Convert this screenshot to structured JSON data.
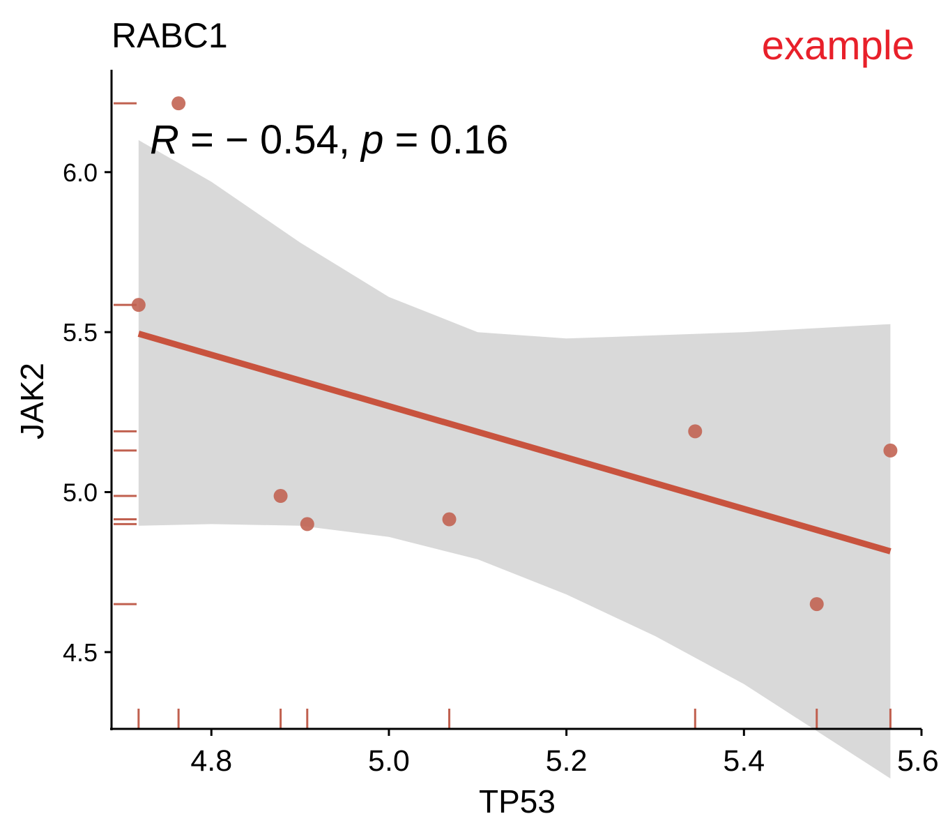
{
  "chart_data": {
    "type": "scatter",
    "title": "RABC1",
    "watermark": "example",
    "xlabel": "TP53",
    "ylabel": "JAK2",
    "xlim": [
      4.6875,
      5.6
    ],
    "ylim": [
      4.26,
      6.32
    ],
    "xticks": [
      "4.8",
      "5.0",
      "5.2",
      "5.4",
      "5.6"
    ],
    "yticks": [
      "4.5",
      "5.0",
      "5.5",
      "6.0"
    ],
    "annotation": {
      "r_label": "R",
      "r_text": " = − 0.54, ",
      "p_label": "p",
      "p_text": " = 0.16"
    },
    "points": [
      {
        "x": 4.718,
        "y": 5.585
      },
      {
        "x": 4.763,
        "y": 6.215
      },
      {
        "x": 4.878,
        "y": 4.988
      },
      {
        "x": 4.908,
        "y": 4.9
      },
      {
        "x": 5.068,
        "y": 4.915
      },
      {
        "x": 5.345,
        "y": 5.19
      },
      {
        "x": 5.482,
        "y": 4.65
      },
      {
        "x": 5.565,
        "y": 5.13
      }
    ],
    "regression": {
      "x": [
        4.718,
        5.565
      ],
      "y": [
        5.495,
        4.815
      ]
    },
    "confidence_band": {
      "x": [
        4.718,
        4.8,
        4.9,
        5.0,
        5.1,
        5.2,
        5.3,
        5.4,
        5.565
      ],
      "upper": [
        6.1,
        5.97,
        5.78,
        5.61,
        5.5,
        5.48,
        5.49,
        5.5,
        5.525
      ],
      "lower": [
        4.895,
        4.9,
        4.895,
        4.86,
        4.79,
        4.68,
        4.55,
        4.4,
        4.105
      ]
    },
    "colors": {
      "point": "#c0604f",
      "line": "#c8533e",
      "band": "#d9d9d9",
      "rug": "#c0604f"
    }
  }
}
